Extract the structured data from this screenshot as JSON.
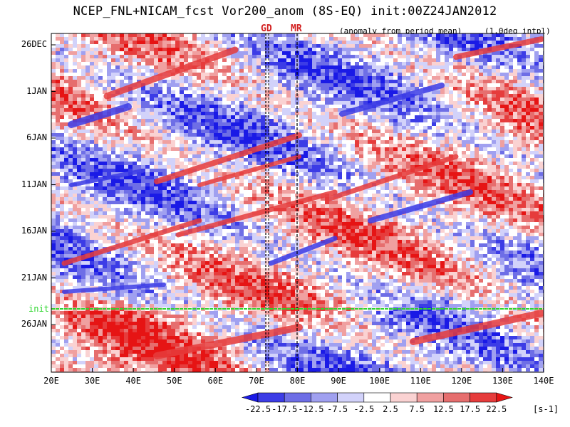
{
  "title": "NCEP_FNL+NICAM_fcst Vor200_anom (8S-EQ) init:00Z24JAN2012",
  "subtitle": "(anomaly from period mean)",
  "interp_note": "(1.0deg intpl)",
  "markers": [
    "GD",
    "MR"
  ],
  "init_label": "init",
  "colorbar": {
    "labels": [
      "-22.5",
      "-17.5",
      "-12.5",
      "-7.5",
      "-2.5",
      "2.5",
      "7.5",
      "12.5",
      "17.5",
      "22.5"
    ],
    "unit": "[s-1]",
    "colors": [
      "#1a1ae6",
      "#3c3ce6",
      "#6e6ee6",
      "#a0a0f0",
      "#d2d2fa",
      "#ffffff",
      "#fad2d2",
      "#f0a0a0",
      "#e66e6e",
      "#e63c3c",
      "#e61414"
    ]
  },
  "chart_data": {
    "type": "heatmap",
    "title": "NCEP_FNL+NICAM_fcst Vor200_anom (8S-EQ) init:00Z24JAN2012",
    "x_ticks": [
      "20E",
      "30E",
      "40E",
      "50E",
      "60E",
      "70E",
      "80E",
      "90E",
      "100E",
      "110E",
      "120E",
      "130E",
      "140E"
    ],
    "x_range": [
      20,
      140
    ],
    "y_ticks": [
      "26DEC",
      "1JAN",
      "6JAN",
      "11JAN",
      "16JAN",
      "21JAN",
      "26JAN"
    ],
    "y_range": [
      "21DEC2011",
      "31JAN2012"
    ],
    "value_levels": [
      -22.5,
      -17.5,
      -12.5,
      -7.5,
      -2.5,
      2.5,
      7.5,
      12.5,
      17.5,
      22.5
    ],
    "init_date": "24JAN2012",
    "marker_lons": {
      "GD": 73,
      "MR": 80
    },
    "notes": "Hovmoller diagram of 200hPa vorticity anomaly; eastward-propagating red/blue bands"
  }
}
